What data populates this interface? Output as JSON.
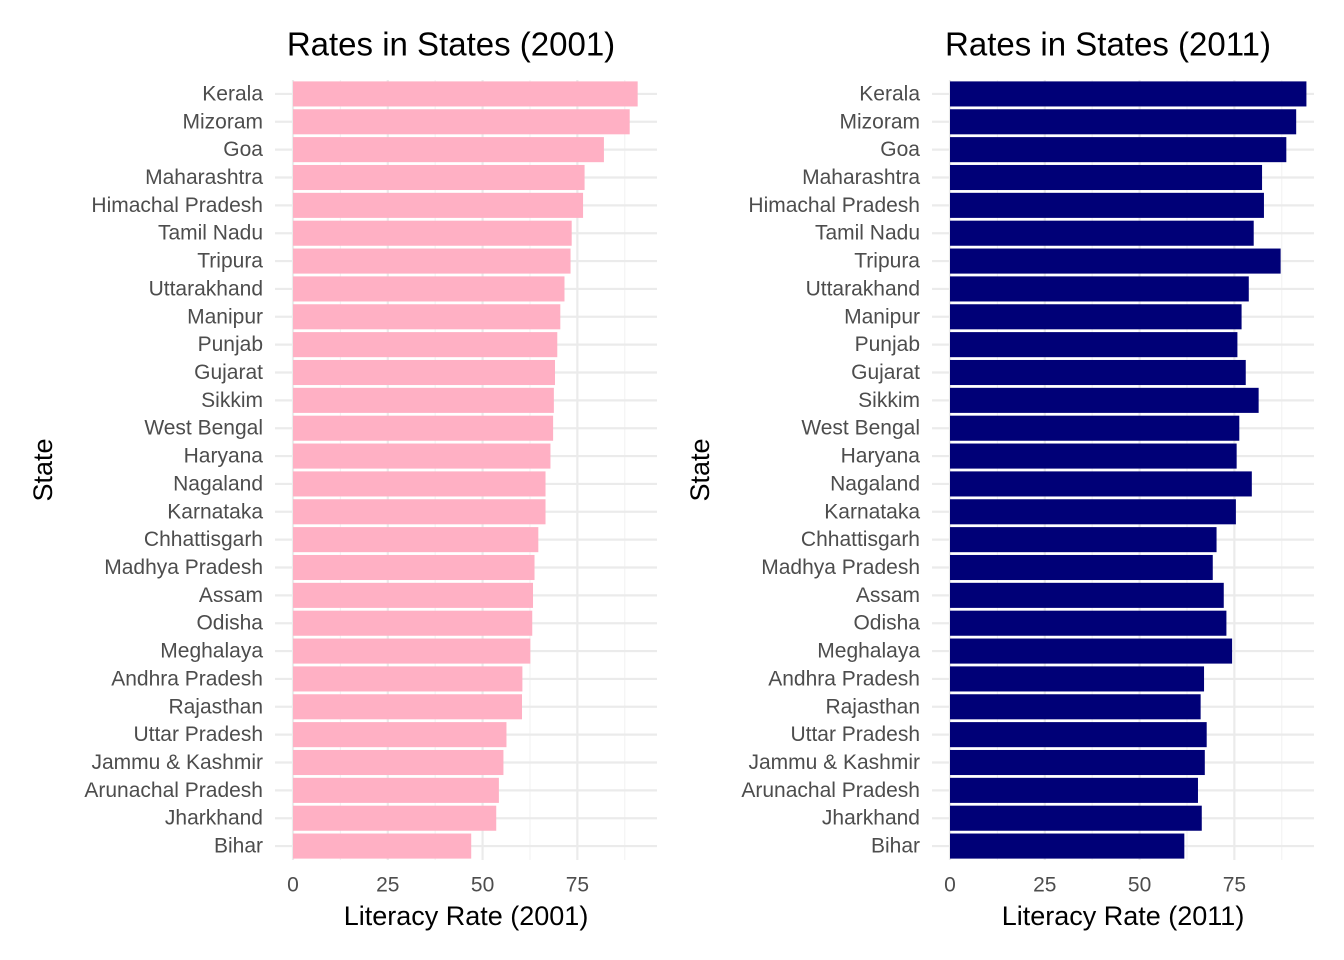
{
  "chart_data": [
    {
      "type": "bar",
      "orientation": "horizontal",
      "title": "Rates in States (2001)",
      "xlabel": "Literacy Rate (2001)",
      "ylabel": "State",
      "bar_color": "#FFB0C4",
      "xlim": [
        0,
        96
      ],
      "xticks": [
        "0",
        "25",
        "50",
        "75"
      ],
      "grid": true,
      "categories": [
        "Kerala",
        "Mizoram",
        "Goa",
        "Maharashtra",
        "Himachal Pradesh",
        "Tamil Nadu",
        "Tripura",
        "Uttarakhand",
        "Manipur",
        "Punjab",
        "Gujarat",
        "Sikkim",
        "West Bengal",
        "Haryana",
        "Nagaland",
        "Karnataka",
        "Chhattisgarh",
        "Madhya Pradesh",
        "Assam",
        "Odisha",
        "Meghalaya",
        "Andhra Pradesh",
        "Rajasthan",
        "Uttar Pradesh",
        "Jammu & Kashmir",
        "Arunachal Pradesh",
        "Jharkhand",
        "Bihar"
      ],
      "values": [
        90.9,
        88.8,
        82.0,
        76.9,
        76.5,
        73.5,
        73.2,
        71.6,
        70.5,
        69.7,
        69.1,
        68.8,
        68.6,
        67.9,
        66.6,
        66.6,
        64.7,
        63.7,
        63.3,
        63.1,
        62.6,
        60.5,
        60.4,
        56.3,
        55.5,
        54.3,
        53.6,
        47.0
      ]
    },
    {
      "type": "bar",
      "orientation": "horizontal",
      "title": "Rates in States (2011)",
      "xlabel": "Literacy Rate (2011)",
      "ylabel": "State",
      "bar_color": "#000077",
      "xlim": [
        0,
        96
      ],
      "xticks": [
        "0",
        "25",
        "50",
        "75"
      ],
      "grid": true,
      "categories": [
        "Kerala",
        "Mizoram",
        "Goa",
        "Maharashtra",
        "Himachal Pradesh",
        "Tamil Nadu",
        "Tripura",
        "Uttarakhand",
        "Manipur",
        "Punjab",
        "Gujarat",
        "Sikkim",
        "West Bengal",
        "Haryana",
        "Nagaland",
        "Karnataka",
        "Chhattisgarh",
        "Madhya Pradesh",
        "Assam",
        "Odisha",
        "Meghalaya",
        "Andhra Pradesh",
        "Rajasthan",
        "Uttar Pradesh",
        "Jammu & Kashmir",
        "Arunachal Pradesh",
        "Jharkhand",
        "Bihar"
      ],
      "values": [
        94.0,
        91.3,
        88.7,
        82.3,
        82.8,
        80.1,
        87.2,
        78.8,
        76.9,
        75.8,
        78.0,
        81.4,
        76.3,
        75.6,
        79.6,
        75.4,
        70.3,
        69.3,
        72.2,
        72.9,
        74.4,
        67.0,
        66.1,
        67.7,
        67.2,
        65.4,
        66.4,
        61.8
      ]
    }
  ]
}
